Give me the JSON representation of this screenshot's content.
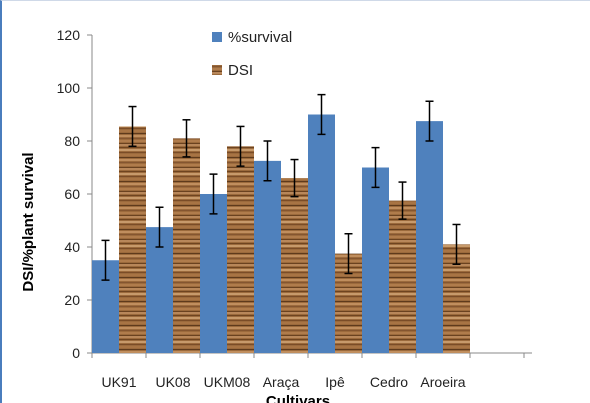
{
  "chart_data": {
    "type": "bar",
    "title": "",
    "xlabel": "Cultivars",
    "ylabel": "DSI/%plant survival",
    "ylim": [
      0,
      120
    ],
    "yticks": [
      0,
      20,
      40,
      60,
      80,
      100,
      120
    ],
    "grid": false,
    "legend_position": "top-center",
    "categories": [
      "UK91",
      "UK08",
      "UKM08",
      "Araça",
      "Ipê",
      "Cedro",
      "Aroeira"
    ],
    "series": [
      {
        "name": "%survival",
        "color": "#4f81bd",
        "fill": "solid",
        "values": [
          35,
          47.5,
          60,
          72.5,
          90,
          70,
          87.5
        ],
        "errors": [
          7.5,
          7.5,
          7.5,
          7.5,
          7.5,
          7.5,
          7.5
        ]
      },
      {
        "name": "DSI",
        "color": "#9b6a3c",
        "fill": "wood-texture",
        "values": [
          85.5,
          81,
          78,
          66,
          37.5,
          57.5,
          41
        ],
        "errors": [
          7.5,
          7,
          7.5,
          7,
          7.5,
          7,
          7.5
        ]
      }
    ]
  }
}
